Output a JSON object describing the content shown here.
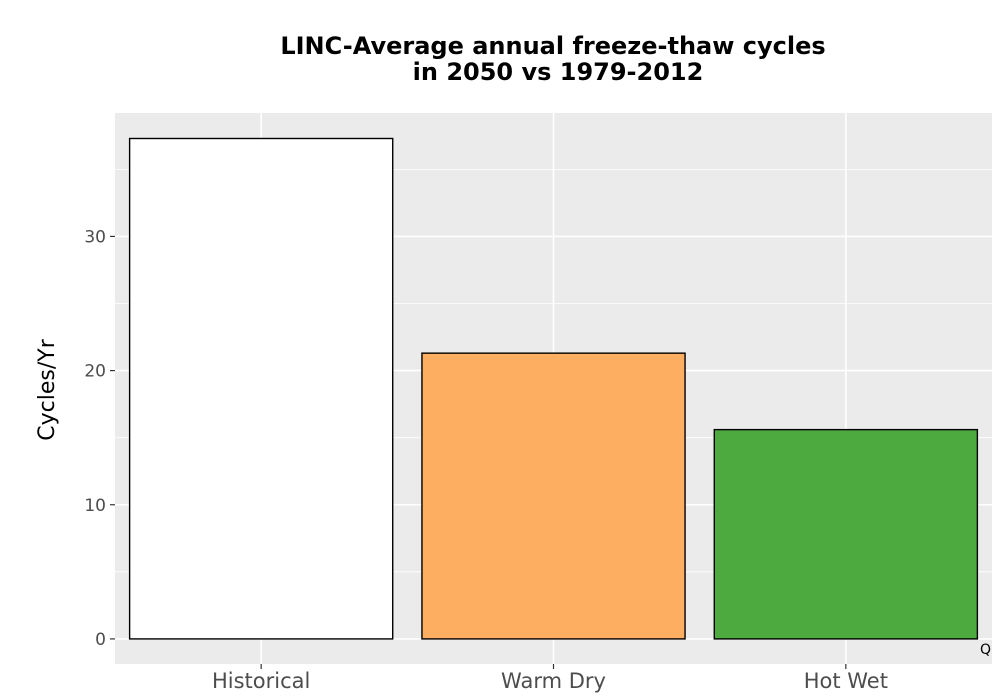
{
  "chart_data": {
    "type": "bar",
    "title_lines": [
      "LINC-Average annual freeze-thaw cycles",
      "in 2050 vs 1979-2012"
    ],
    "xlabel": "",
    "ylabel": "Cycles/Yr",
    "categories": [
      "Historical",
      "Warm Dry",
      "Hot Wet"
    ],
    "values": [
      37.3,
      21.3,
      15.6
    ],
    "colors": [
      "#ffffff",
      "#fdae61",
      "#4daa3f"
    ],
    "bar_outline": "#000000",
    "ylim": [
      -1.87,
      39.2
    ],
    "yticks": [
      0,
      10,
      20,
      30
    ],
    "ytick_labels": [
      "0",
      "10",
      "20",
      "30"
    ],
    "grid": true,
    "panel_background": "#ebebeb",
    "grid_color": "#ffffff"
  },
  "corner_mark": "Q"
}
